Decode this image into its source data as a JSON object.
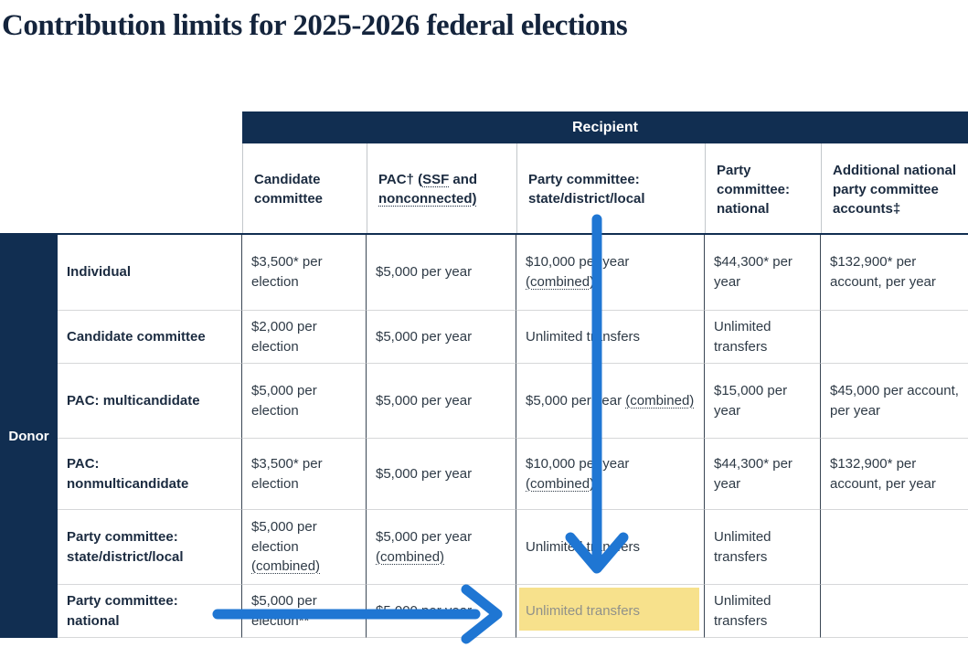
{
  "page": {
    "title": "Contribution limits for 2025-2026 federal elections"
  },
  "table": {
    "recipient_header": "Recipient",
    "donor_header": "Donor",
    "columns": [
      "Candidate committee",
      [
        {
          "t": "PAC† ("
        },
        {
          "t": "SSF",
          "d": true
        },
        {
          "t": " and "
        },
        {
          "t": "nonconnected)",
          "d": true
        }
      ],
      "Party committee: state/district/local",
      "Party committee: national",
      "Additional national party committee accounts‡"
    ],
    "rows": [
      {
        "label": "Individual",
        "cells": [
          "$3,500* per election",
          "$5,000 per year",
          [
            {
              "t": "$10,000 per year "
            },
            {
              "t": "(combined)",
              "d": true
            }
          ],
          "$44,300* per year",
          "$132,900* per account, per year"
        ]
      },
      {
        "label": "Candidate committee",
        "cells": [
          "$2,000 per election",
          "$5,000 per year",
          "Unlimited transfers",
          "Unlimited transfers",
          ""
        ]
      },
      {
        "label": "PAC: multicandidate",
        "cells": [
          "$5,000 per election",
          "$5,000 per year",
          [
            {
              "t": "$5,000 per year "
            },
            {
              "t": "(combined)",
              "d": true
            }
          ],
          "$15,000 per year",
          "$45,000 per account, per year"
        ]
      },
      {
        "label": "PAC: nonmulticandidate",
        "cells": [
          "$3,500* per election",
          "$5,000 per year",
          [
            {
              "t": "$10,000 per year "
            },
            {
              "t": "(combined)",
              "d": true
            }
          ],
          "$44,300* per year",
          "$132,900* per account, per year"
        ]
      },
      {
        "label": "Party committee: state/district/local",
        "cells": [
          [
            {
              "t": "$5,000 per election "
            },
            {
              "t": "(combined)",
              "d": true
            }
          ],
          [
            {
              "t": "$5,000 per year "
            },
            {
              "t": "(combined)",
              "d": true
            }
          ],
          "Unlimited transfers",
          "Unlimited transfers",
          ""
        ]
      },
      {
        "label": "Party committee: national",
        "cells": [
          "$5,000 per election**",
          "$5,000 per year",
          "Unlimited transfers",
          "Unlimited transfers",
          ""
        ],
        "highlight": 2
      }
    ]
  },
  "annotations": {
    "arrow_color": "#1f76d3",
    "highlight_color": "#f7e18c",
    "highlighted_value": "Unlimited transfers"
  },
  "colors": {
    "header_navy": "#112e51",
    "title_color": "#14243c"
  }
}
